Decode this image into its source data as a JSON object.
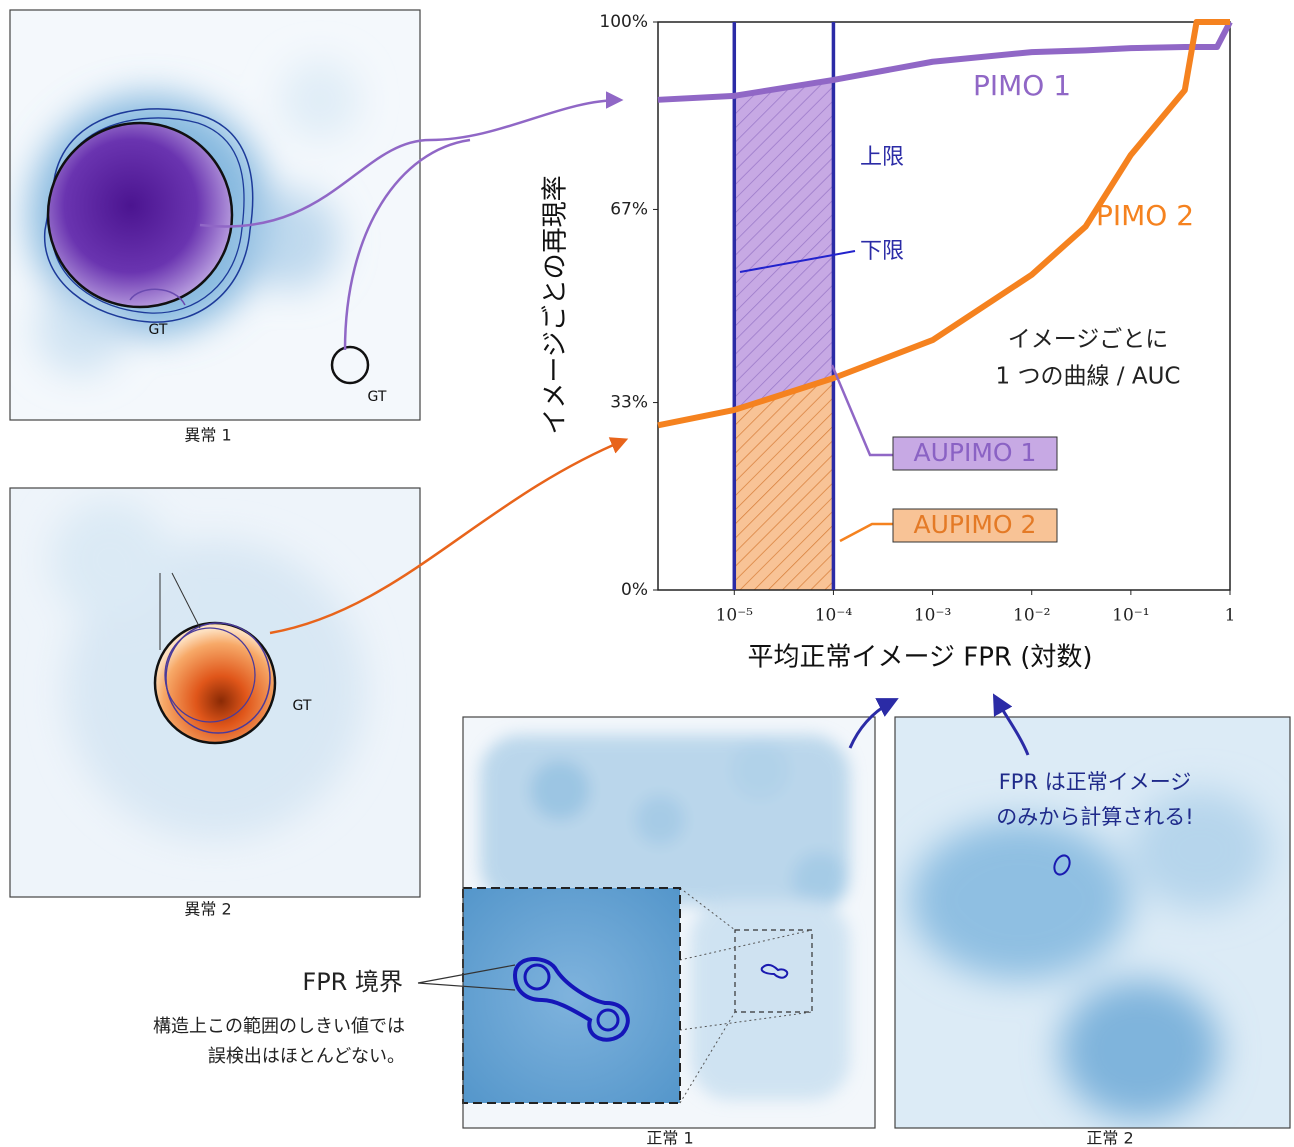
{
  "images": [
    {
      "caption": "異常 1",
      "gt_labels": [
        "GT",
        "GT"
      ]
    },
    {
      "caption": "異常 2",
      "gt_labels": [
        "GT"
      ]
    },
    {
      "caption": "正常 1"
    },
    {
      "caption": "正常 2"
    }
  ],
  "notes": {
    "fpr_boundary": "FPR 境界",
    "boundary_text": [
      "構造上この範囲のしきい値では",
      "誤検出はほとんどない。"
    ],
    "fpr_text": [
      "FPR は正常イメージ",
      "のみから計算される!"
    ]
  },
  "chart_data": {
    "type": "line",
    "xlabel": "平均正常イメージ FPR (対数)",
    "ylabel": "イメージごとの再現率",
    "x_scale": "log",
    "x": [
      1.7e-06,
      1e-05,
      0.0001,
      0.001,
      0.01,
      0.035,
      0.1,
      0.35,
      0.46,
      0.74,
      1
    ],
    "series": [
      {
        "name": "PIMO 1",
        "color": "#9067c6",
        "values": [
          86.3,
          87,
          89.8,
          93,
          94.7,
          95,
          95.4,
          95.6,
          95.6,
          95.6,
          100
        ]
      },
      {
        "name": "PIMO 2",
        "color": "#f5821f",
        "values": [
          29,
          31.7,
          37.3,
          44,
          55.5,
          64,
          76.6,
          88,
          100,
          100,
          100
        ]
      }
    ],
    "bounds": [
      1e-05,
      0.0001
    ],
    "bounds_color": "#2b2ba6",
    "xlim": [
      1.7e-06,
      1
    ],
    "ylim": [
      0,
      100
    ],
    "xticks": [
      {
        "value": 1e-05,
        "label": "10⁻⁵"
      },
      {
        "value": 0.0001,
        "label": "10⁻⁴"
      },
      {
        "value": 0.001,
        "label": "10⁻³"
      },
      {
        "value": 0.01,
        "label": "10⁻²"
      },
      {
        "value": 0.1,
        "label": "10⁻¹"
      },
      1
    ],
    "yticks": [
      {
        "value": 0,
        "label": "0%"
      },
      {
        "value": 33,
        "label": "33%"
      },
      {
        "value": 67,
        "label": "67%"
      },
      {
        "value": 100,
        "label": "100%"
      }
    ],
    "annotations": {
      "upper": "上限",
      "lower": "下限",
      "per_image": [
        "イメージごとに",
        "1 つの曲線 / AUC"
      ],
      "aupimo": [
        "AUPIMO 1",
        "AUPIMO 2"
      ]
    }
  }
}
